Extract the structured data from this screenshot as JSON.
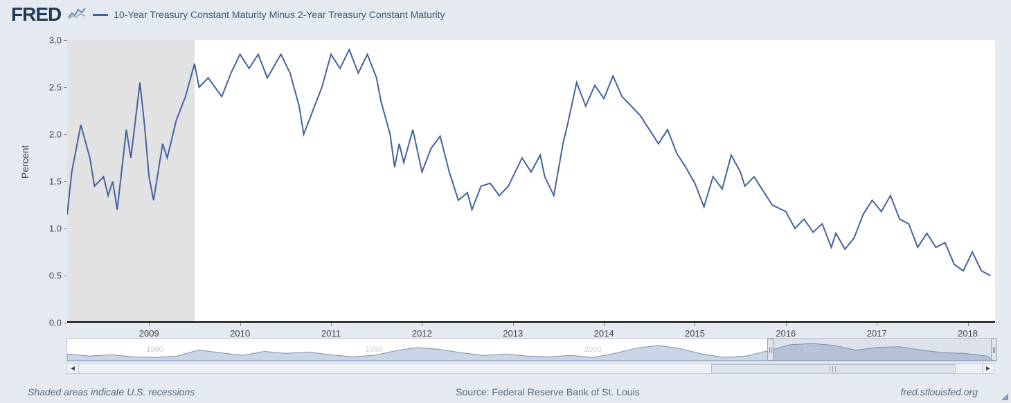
{
  "brand": {
    "name": "FRED",
    "text_color": "#1f3b57"
  },
  "legend": {
    "label": "10-Year Treasury Constant Maturity Minus 2-Year Treasury Constant Maturity",
    "color": "#41629f"
  },
  "chart": {
    "type": "line",
    "y_axis": {
      "label": "Percent",
      "ylim": [
        0.0,
        3.0
      ],
      "tick_step": 0.5,
      "label_fontsize": 14,
      "tick_fontsize": 13,
      "tick_color": "#444444"
    },
    "x_axis": {
      "tick_years": [
        2009,
        2010,
        2011,
        2012,
        2013,
        2014,
        2015,
        2016,
        2017,
        2018
      ],
      "range": [
        2008.1,
        2018.3
      ],
      "tick_fontsize": 13
    },
    "recession": {
      "start": 2008.1,
      "end": 2009.5,
      "fill": "#e2e2e2"
    },
    "background_color": "#ffffff",
    "page_background": "#e4eaf0",
    "line_color": "#41629f",
    "line_width": 2,
    "series": [
      [
        2008.1,
        1.15
      ],
      [
        2008.15,
        1.6
      ],
      [
        2008.25,
        2.1
      ],
      [
        2008.35,
        1.75
      ],
      [
        2008.4,
        1.45
      ],
      [
        2008.5,
        1.55
      ],
      [
        2008.55,
        1.35
      ],
      [
        2008.6,
        1.5
      ],
      [
        2008.65,
        1.2
      ],
      [
        2008.75,
        2.05
      ],
      [
        2008.8,
        1.75
      ],
      [
        2008.9,
        2.55
      ],
      [
        2008.95,
        2.1
      ],
      [
        2009.0,
        1.55
      ],
      [
        2009.05,
        1.3
      ],
      [
        2009.15,
        1.9
      ],
      [
        2009.2,
        1.75
      ],
      [
        2009.3,
        2.15
      ],
      [
        2009.4,
        2.4
      ],
      [
        2009.5,
        2.75
      ],
      [
        2009.55,
        2.5
      ],
      [
        2009.65,
        2.6
      ],
      [
        2009.8,
        2.4
      ],
      [
        2009.9,
        2.65
      ],
      [
        2010.0,
        2.85
      ],
      [
        2010.1,
        2.7
      ],
      [
        2010.2,
        2.85
      ],
      [
        2010.3,
        2.6
      ],
      [
        2010.45,
        2.85
      ],
      [
        2010.55,
        2.65
      ],
      [
        2010.65,
        2.3
      ],
      [
        2010.7,
        2.0
      ],
      [
        2010.8,
        2.25
      ],
      [
        2010.9,
        2.5
      ],
      [
        2011.0,
        2.85
      ],
      [
        2011.1,
        2.7
      ],
      [
        2011.2,
        2.9
      ],
      [
        2011.3,
        2.65
      ],
      [
        2011.4,
        2.85
      ],
      [
        2011.5,
        2.6
      ],
      [
        2011.55,
        2.35
      ],
      [
        2011.65,
        2.0
      ],
      [
        2011.7,
        1.65
      ],
      [
        2011.75,
        1.9
      ],
      [
        2011.8,
        1.7
      ],
      [
        2011.9,
        2.05
      ],
      [
        2012.0,
        1.6
      ],
      [
        2012.1,
        1.85
      ],
      [
        2012.2,
        1.98
      ],
      [
        2012.3,
        1.6
      ],
      [
        2012.4,
        1.3
      ],
      [
        2012.5,
        1.38
      ],
      [
        2012.55,
        1.2
      ],
      [
        2012.65,
        1.45
      ],
      [
        2012.75,
        1.48
      ],
      [
        2012.85,
        1.35
      ],
      [
        2012.95,
        1.45
      ],
      [
        2013.1,
        1.75
      ],
      [
        2013.2,
        1.6
      ],
      [
        2013.3,
        1.78
      ],
      [
        2013.35,
        1.55
      ],
      [
        2013.45,
        1.35
      ],
      [
        2013.55,
        1.9
      ],
      [
        2013.6,
        2.1
      ],
      [
        2013.7,
        2.55
      ],
      [
        2013.8,
        2.3
      ],
      [
        2013.9,
        2.52
      ],
      [
        2014.0,
        2.38
      ],
      [
        2014.1,
        2.62
      ],
      [
        2014.2,
        2.4
      ],
      [
        2014.3,
        2.3
      ],
      [
        2014.4,
        2.2
      ],
      [
        2014.5,
        2.05
      ],
      [
        2014.6,
        1.9
      ],
      [
        2014.7,
        2.05
      ],
      [
        2014.8,
        1.8
      ],
      [
        2014.9,
        1.65
      ],
      [
        2015.0,
        1.48
      ],
      [
        2015.1,
        1.23
      ],
      [
        2015.2,
        1.55
      ],
      [
        2015.3,
        1.42
      ],
      [
        2015.4,
        1.78
      ],
      [
        2015.5,
        1.6
      ],
      [
        2015.55,
        1.45
      ],
      [
        2015.65,
        1.55
      ],
      [
        2015.75,
        1.4
      ],
      [
        2015.85,
        1.25
      ],
      [
        2016.0,
        1.18
      ],
      [
        2016.1,
        1.0
      ],
      [
        2016.2,
        1.1
      ],
      [
        2016.3,
        0.96
      ],
      [
        2016.4,
        1.05
      ],
      [
        2016.5,
        0.8
      ],
      [
        2016.55,
        0.95
      ],
      [
        2016.65,
        0.78
      ],
      [
        2016.75,
        0.9
      ],
      [
        2016.85,
        1.15
      ],
      [
        2016.95,
        1.3
      ],
      [
        2017.05,
        1.18
      ],
      [
        2017.15,
        1.35
      ],
      [
        2017.25,
        1.1
      ],
      [
        2017.35,
        1.05
      ],
      [
        2017.45,
        0.8
      ],
      [
        2017.55,
        0.95
      ],
      [
        2017.65,
        0.8
      ],
      [
        2017.75,
        0.85
      ],
      [
        2017.85,
        0.62
      ],
      [
        2017.95,
        0.55
      ],
      [
        2018.05,
        0.75
      ],
      [
        2018.15,
        0.55
      ],
      [
        2018.25,
        0.5
      ]
    ]
  },
  "range_selector": {
    "full_range": [
      1976,
      2018.3
    ],
    "selected": [
      2008.1,
      2018.3
    ],
    "ghost_labels": [
      {
        "year": 1980,
        "text": "1980"
      },
      {
        "year": 1990,
        "text": "1990"
      },
      {
        "year": 2000,
        "text": "2000"
      },
      {
        "year": 2010,
        "text": "2010"
      }
    ],
    "mini_fill": "#9fb2cf",
    "mini_stroke": "#7a90b5",
    "mini_series": [
      [
        1976,
        0.8
      ],
      [
        1977,
        0.5
      ],
      [
        1978,
        0.7
      ],
      [
        1979,
        0.4
      ],
      [
        1980,
        0.3
      ],
      [
        1981,
        0.5
      ],
      [
        1982,
        1.4
      ],
      [
        1983,
        1.0
      ],
      [
        1984,
        0.6
      ],
      [
        1985,
        1.2
      ],
      [
        1986,
        0.9
      ],
      [
        1987,
        1.1
      ],
      [
        1988,
        0.7
      ],
      [
        1989,
        0.4
      ],
      [
        1990,
        0.6
      ],
      [
        1991,
        1.3
      ],
      [
        1992,
        1.8
      ],
      [
        1993,
        1.5
      ],
      [
        1994,
        1.0
      ],
      [
        1995,
        0.6
      ],
      [
        1996,
        0.8
      ],
      [
        1997,
        0.5
      ],
      [
        1998,
        0.4
      ],
      [
        1999,
        0.6
      ],
      [
        2000,
        0.3
      ],
      [
        2001,
        0.9
      ],
      [
        2002,
        1.7
      ],
      [
        2003,
        2.1
      ],
      [
        2004,
        1.6
      ],
      [
        2005,
        0.8
      ],
      [
        2006,
        0.3
      ],
      [
        2007,
        0.5
      ],
      [
        2008,
        1.3
      ],
      [
        2009,
        2.2
      ],
      [
        2010,
        2.4
      ],
      [
        2011,
        2.1
      ],
      [
        2012,
        1.4
      ],
      [
        2013,
        1.8
      ],
      [
        2014,
        1.9
      ],
      [
        2015,
        1.4
      ],
      [
        2016,
        1.0
      ],
      [
        2017,
        0.9
      ],
      [
        2018,
        0.5
      ]
    ]
  },
  "footer": {
    "left": "Shaded areas indicate U.S. recessions",
    "center": "Source: Federal Reserve Bank of St. Louis",
    "right": "fred.stlouisfed.org"
  },
  "scrollbar": {
    "thumb_left_pct": 70,
    "thumb_width_pct": 27
  }
}
